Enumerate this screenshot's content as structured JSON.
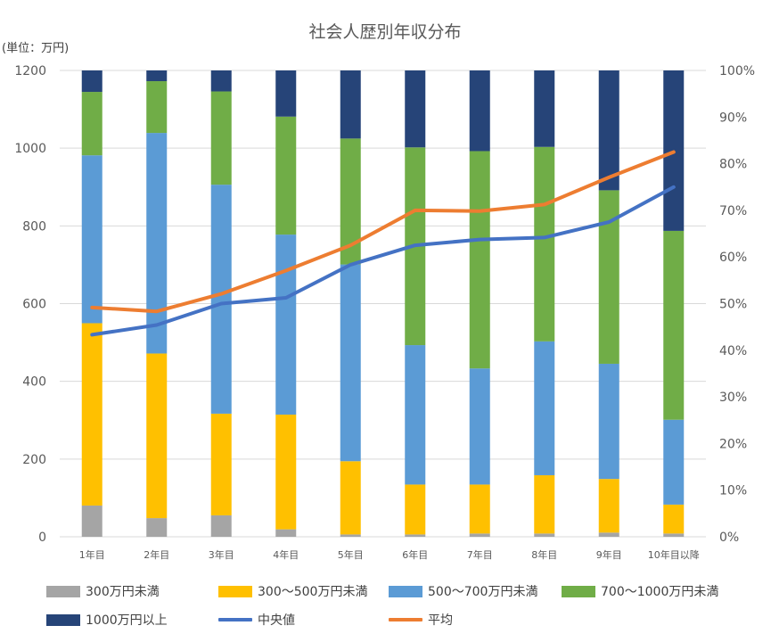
{
  "chart_data": {
    "type": "bar",
    "stacked": true,
    "title": "社会人歴別年収分布",
    "unit_label": "(単位：万円)",
    "categories": [
      "1年目",
      "2年目",
      "3年目",
      "4年目",
      "5年目",
      "6年目",
      "7年目",
      "8年目",
      "9年目",
      "10年目以降"
    ],
    "left_axis": {
      "min": 0,
      "max": 1200,
      "ticks": [
        "0",
        "200",
        "400",
        "600",
        "800",
        "1000",
        "1200"
      ]
    },
    "right_axis": {
      "min": 0,
      "max": 100,
      "ticks": [
        "0%",
        "10%",
        "20%",
        "30%",
        "40%",
        "50%",
        "60%",
        "70%",
        "80%",
        "90%",
        "100%"
      ]
    },
    "bar_series": [
      {
        "name": "300万円未満",
        "color": "#a5a5a5",
        "values": [
          6.7,
          4.0,
          4.6,
          1.6,
          0.5,
          0.5,
          0.7,
          0.7,
          0.9,
          0.7
        ]
      },
      {
        "name": "300～500万円未満",
        "color": "#ffc000",
        "values": [
          39.1,
          35.3,
          21.8,
          24.6,
          15.7,
          10.7,
          10.5,
          12.5,
          11.5,
          6.2
        ]
      },
      {
        "name": "500～700万円未満",
        "color": "#5b9bd5",
        "values": [
          36.0,
          47.3,
          49.1,
          38.6,
          42.2,
          29.9,
          24.9,
          28.7,
          24.7,
          18.2
        ]
      },
      {
        "name": "700～1000万円未満",
        "color": "#70ad47",
        "values": [
          13.6,
          11.1,
          20.0,
          25.3,
          27.0,
          42.4,
          46.6,
          41.7,
          37.2,
          40.5
        ]
      },
      {
        "name": "1000万円以上",
        "color": "#264478",
        "values": [
          4.6,
          2.3,
          4.5,
          9.9,
          14.6,
          16.5,
          17.3,
          16.4,
          25.7,
          34.4
        ]
      }
    ],
    "line_series": [
      {
        "name": "中央値",
        "color": "#4472c4",
        "axis": "left",
        "values": [
          520,
          545,
          600,
          615,
          700,
          750,
          765,
          770,
          810,
          900
        ]
      },
      {
        "name": "平均",
        "color": "#ed7d31",
        "axis": "left",
        "values": [
          590,
          580,
          625,
          685,
          750,
          840,
          838,
          855,
          925,
          990
        ]
      }
    ],
    "legend_position": "bottom"
  }
}
